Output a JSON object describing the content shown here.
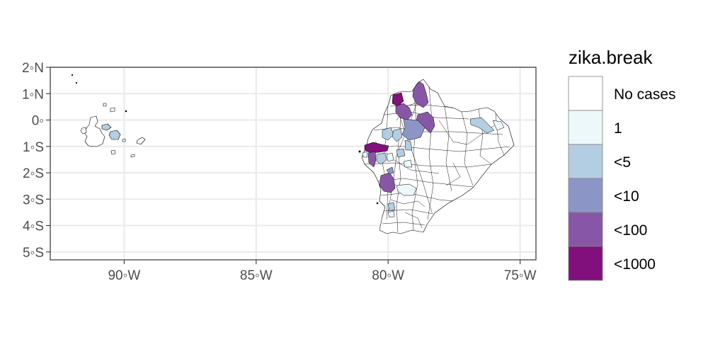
{
  "map": {
    "axes": {
      "x_ticks": [
        {
          "value": -90,
          "label": "90◦W"
        },
        {
          "value": -85,
          "label": "85◦W"
        },
        {
          "value": -80,
          "label": "80◦W"
        },
        {
          "value": -75,
          "label": "75◦W"
        }
      ],
      "y_ticks": [
        {
          "value": 2,
          "label": "2◦N"
        },
        {
          "value": 1,
          "label": "1◦N"
        },
        {
          "value": 0,
          "label": "0◦"
        },
        {
          "value": -1,
          "label": "1◦S"
        },
        {
          "value": -2,
          "label": "2◦S"
        },
        {
          "value": -3,
          "label": "3◦S"
        },
        {
          "value": -4,
          "label": "4◦S"
        },
        {
          "value": -5,
          "label": "5◦S"
        }
      ],
      "xlim": [
        -92.8,
        -74.4
      ],
      "ylim": [
        -5.3,
        2.0
      ],
      "grid": true
    },
    "legend": {
      "title": "zika.break",
      "placement": "right",
      "items": [
        {
          "label": "No cases",
          "color": "#ffffff"
        },
        {
          "label": "1",
          "color": "#edf8fb"
        },
        {
          "label": "<5",
          "color": "#b3cde3"
        },
        {
          "label": "<10",
          "color": "#8c96c6"
        },
        {
          "label": "<100",
          "color": "#8856a7"
        },
        {
          "label": "<1000",
          "color": "#810f7c"
        }
      ]
    }
  }
}
